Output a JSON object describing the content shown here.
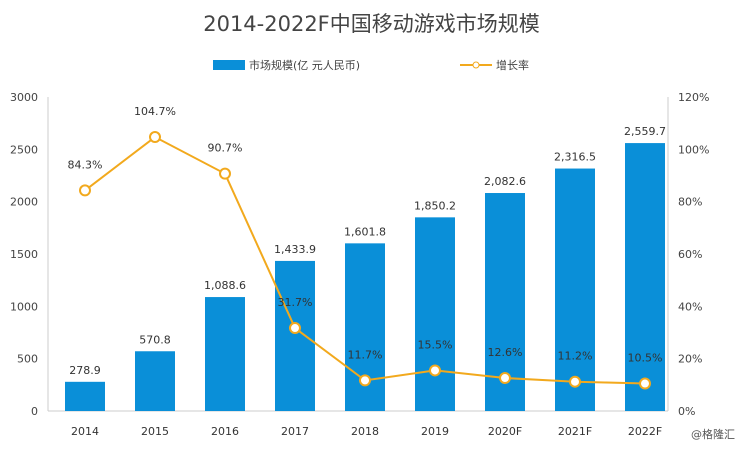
{
  "chart_data": {
    "type": "bar+line",
    "title": "2014-2022F中国移动游戏市场规模",
    "categories": [
      "2014",
      "2015",
      "2016",
      "2017",
      "2018",
      "2019",
      "2020F",
      "2021F",
      "2022F"
    ],
    "series": [
      {
        "name": "市场规模(亿 元人民币)",
        "type": "bar",
        "axis": "left",
        "color": "#0a8fd8",
        "values": [
          278.9,
          570.8,
          1088.6,
          1433.9,
          1601.8,
          1850.2,
          2082.6,
          2316.5,
          2559.7
        ],
        "labels": [
          "278.9",
          "570.8",
          "1,088.6",
          "1,433.9",
          "1,601.8",
          "1,850.2",
          "2,082.6",
          "2,316.5",
          "2,559.7"
        ]
      },
      {
        "name": "增长率",
        "type": "line",
        "axis": "right",
        "color": "#f2a91d",
        "values": [
          84.3,
          104.7,
          90.7,
          31.7,
          11.7,
          15.5,
          12.6,
          11.2,
          10.5
        ],
        "labels": [
          "84.3%",
          "104.7%",
          "90.7%",
          "31.7%",
          "11.7%",
          "15.5%",
          "12.6%",
          "11.2%",
          "10.5%"
        ]
      }
    ],
    "ylim": [
      0,
      3000
    ],
    "yticks": [
      "0",
      "500",
      "1000",
      "1500",
      "2000",
      "2500",
      "3000"
    ],
    "y2lim": [
      0,
      120
    ],
    "y2ticks": [
      "0%",
      "20%",
      "40%",
      "60%",
      "80%",
      "100%",
      "120%"
    ],
    "grid": false,
    "legend": "top"
  },
  "credit": "@格隆汇"
}
